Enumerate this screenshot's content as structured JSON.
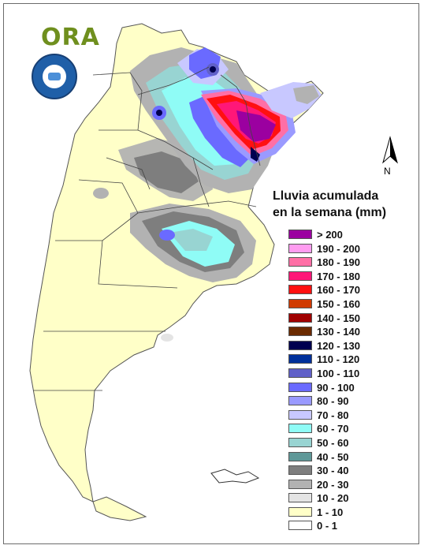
{
  "logo": {
    "text": "ORA",
    "icon": "ora-logo-icon"
  },
  "seal": {
    "icon": "smn-seal-icon"
  },
  "north": {
    "label": "N",
    "icon": "north-arrow-icon"
  },
  "legend": {
    "title_line1": "Lluvia acumulada",
    "title_line2": "en la semana (mm)",
    "classes": [
      {
        "label": "> 200",
        "color": "#9b00a0"
      },
      {
        "label": "190 - 200",
        "color": "#ff9cf0"
      },
      {
        "label": "180 - 190",
        "color": "#ff6fa6"
      },
      {
        "label": "170 - 180",
        "color": "#ff1778"
      },
      {
        "label": "160 - 170",
        "color": "#ff1010"
      },
      {
        "label": "150 - 160",
        "color": "#d03a00"
      },
      {
        "label": "140 - 150",
        "color": "#a00000"
      },
      {
        "label": "130 - 140",
        "color": "#6a2a00"
      },
      {
        "label": "120 - 130",
        "color": "#00004f"
      },
      {
        "label": "110 - 120",
        "color": "#00309a"
      },
      {
        "label": "100 - 110",
        "color": "#6060c8"
      },
      {
        "label": "90 - 100",
        "color": "#6a6aff"
      },
      {
        "label": "80 - 90",
        "color": "#9a9aff"
      },
      {
        "label": "70 - 80",
        "color": "#c8c8ff"
      },
      {
        "label": "60 - 70",
        "color": "#8ffcf6"
      },
      {
        "label": "50 - 60",
        "color": "#98d4d2"
      },
      {
        "label": "40 - 50",
        "color": "#5e9898"
      },
      {
        "label": "30 - 40",
        "color": "#7e7e7e"
      },
      {
        "label": "20 - 30",
        "color": "#b2b2b2"
      },
      {
        "label": "10 - 20",
        "color": "#e4e4e4"
      },
      {
        "label": "1 - 10",
        "color": "#ffffc8"
      },
      {
        "label": "0 - 1",
        "color": "#ffffff"
      }
    ]
  }
}
